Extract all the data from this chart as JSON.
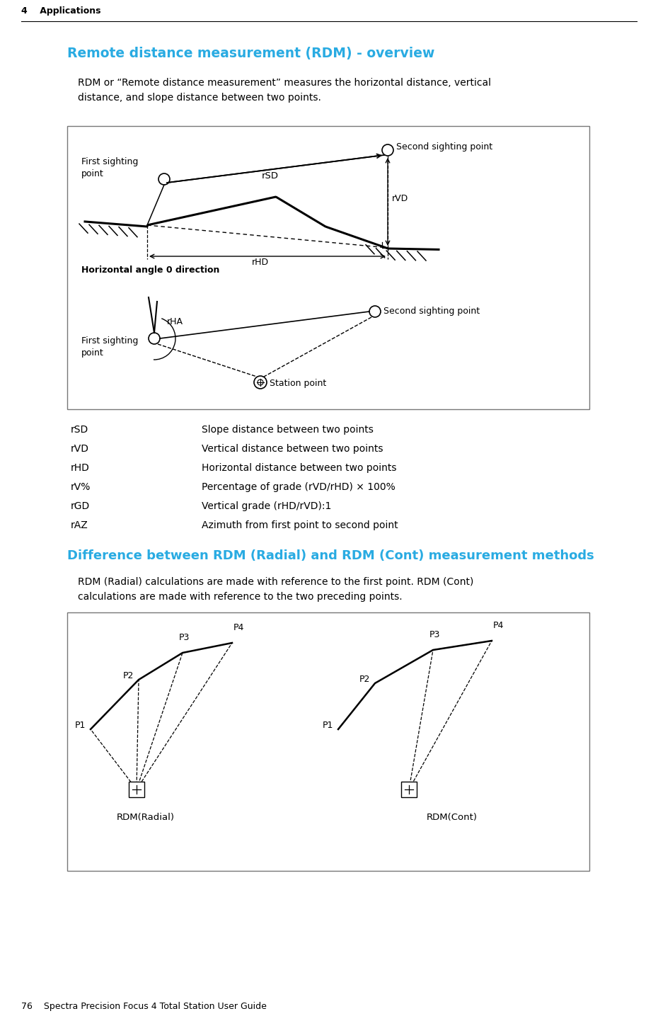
{
  "page_header": "4    Applications",
  "page_footer": "76    Spectra Precision Focus 4 Total Station User Guide",
  "title": "Remote distance measurement (RDM) - overview",
  "intro_text": "RDM or “Remote distance measurement” measures the horizontal distance, vertical\ndistance, and slope distance between two points.",
  "table_rows": [
    [
      "rSD",
      "Slope distance between two points"
    ],
    [
      "rVD",
      "Vertical distance between two points"
    ],
    [
      "rHD",
      "Horizontal distance between two points"
    ],
    [
      "rV%",
      "Percentage of grade (rVD/rHD) × 100%"
    ],
    [
      "rGD",
      "Vertical grade (rHD/rVD):1"
    ],
    [
      "rAZ",
      "Azimuth from first point to second point"
    ]
  ],
  "subtitle": "Difference between RDM (Radial) and RDM (Cont) measurement methods",
  "diff_text": "RDM (Radial) calculations are made with reference to the first point. RDM (Cont)\ncalculations are made with reference to the two preceding points.",
  "cyan_color": "#29ABE2",
  "text_color": "#000000",
  "bg_color": "#FFFFFF"
}
